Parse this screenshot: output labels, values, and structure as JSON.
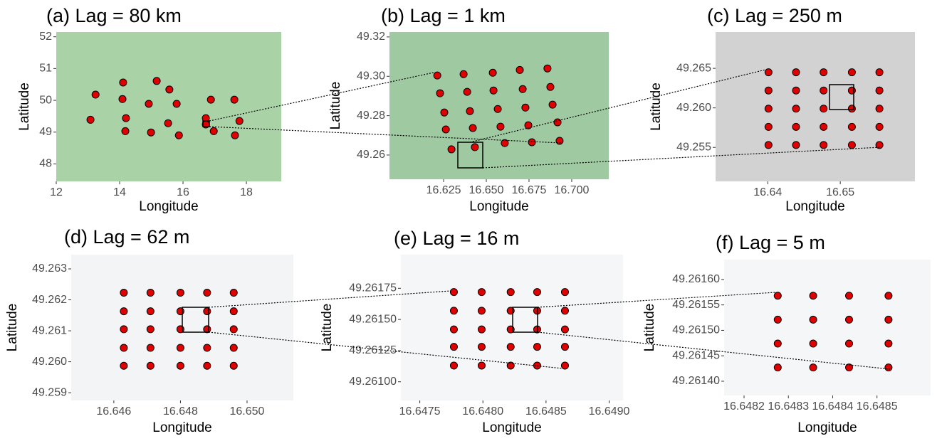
{
  "chart_data": [
    {
      "type": "scatter",
      "title": "(a) Lag = 80 km",
      "x_label": "Longitude",
      "y_label": "Latitude",
      "map_color": "#a9d3a6",
      "color": "#e00000",
      "xlim": [
        12.0,
        19.1
      ],
      "ylim": [
        47.45,
        52.15
      ],
      "xticks": [
        12,
        14,
        16,
        18
      ],
      "yticks": [
        48,
        49,
        50,
        51,
        52
      ],
      "x": [
        13.24,
        14.11,
        15.17,
        15.57,
        14.09,
        14.92,
        15.8,
        16.88,
        17.62,
        13.08,
        14.2,
        15.53,
        16.72,
        17.78,
        14.18,
        14.99,
        15.87,
        16.97,
        17.64,
        16.72
      ],
      "y": [
        50.18,
        50.56,
        50.61,
        50.34,
        50.04,
        49.89,
        49.89,
        50.02,
        50.02,
        49.39,
        49.44,
        49.28,
        49.44,
        49.35,
        49.03,
        48.99,
        48.9,
        49.03,
        48.9,
        49.24
      ]
    },
    {
      "type": "scatter",
      "title": "(b) Lag = 1 km",
      "x_label": "Longitude",
      "y_label": "Latitude",
      "map_color": "#9fc9a0",
      "color": "#e00000",
      "xlim": [
        16.5933,
        16.7217
      ],
      "ylim": [
        49.2477,
        49.3225
      ],
      "xticks": [
        16.625,
        {
          "value": 16.65,
          "label": "16.650"
        },
        16.675,
        {
          "value": 16.7,
          "label": "16.700"
        }
      ],
      "yticks": [
        49.26,
        49.28,
        {
          "value": 49.3,
          "label": "49.30"
        },
        49.32
      ],
      "x": [
        16.6213,
        16.6367,
        16.6538,
        16.6696,
        16.6858,
        16.6229,
        16.6388,
        16.6542,
        16.6713,
        16.6875,
        16.6254,
        16.6404,
        16.6567,
        16.6729,
        16.6888,
        16.6263,
        16.6421,
        16.6583,
        16.6746,
        16.6917,
        16.6296,
        16.6433,
        16.6608,
        16.6767,
        16.6929
      ],
      "y": [
        49.3004,
        49.3011,
        49.3018,
        49.3032,
        49.304,
        49.2914,
        49.2921,
        49.2928,
        49.2935,
        49.2946,
        49.2816,
        49.2823,
        49.2834,
        49.2841,
        49.2856,
        49.273,
        49.2737,
        49.2744,
        49.2751,
        49.2766,
        49.2629,
        49.264,
        49.2661,
        49.2665,
        49.2672
      ]
    },
    {
      "type": "scatter",
      "title": "(c) Lag = 250 m",
      "x_label": "Longitude",
      "y_label": "Latitude",
      "map_color": "#d2d2d2",
      "color": "#e00000",
      "xlim": [
        16.6328,
        16.6603
      ],
      "ylim": [
        49.2507,
        49.2696
      ],
      "xticks": [
        16.64,
        16.65
      ],
      "yticks": [
        49.255,
        {
          "value": 49.26,
          "label": "49.260"
        },
        49.265
      ],
      "x": [
        16.6401,
        16.6439,
        16.6477,
        16.6516,
        16.6554,
        16.6401,
        16.6439,
        16.6477,
        16.6516,
        16.6554,
        16.6401,
        16.6439,
        16.6477,
        16.6516,
        16.6554,
        16.6401,
        16.6439,
        16.6477,
        16.6516,
        16.6554,
        16.6401,
        16.6439,
        16.6477,
        16.6516,
        16.6554
      ],
      "y": [
        49.2645,
        49.2645,
        49.2645,
        49.2645,
        49.2645,
        49.2622,
        49.2622,
        49.2622,
        49.2622,
        49.2622,
        49.2599,
        49.2599,
        49.2599,
        49.2599,
        49.2599,
        49.2576,
        49.2576,
        49.2576,
        49.2576,
        49.2576,
        49.2553,
        49.2553,
        49.2553,
        49.2553,
        49.2553
      ]
    },
    {
      "type": "scatter",
      "title": "(d) Lag = 62 m",
      "x_label": "Longitude",
      "y_label": "Latitude",
      "map_color": "#f3f4f6",
      "color": "#e00000",
      "xlim": [
        16.64472,
        16.65139
      ],
      "ylim": [
        49.25875,
        49.26346
      ],
      "xticks": [
        16.646,
        16.648,
        {
          "value": 16.65,
          "label": "16.650"
        }
      ],
      "yticks": [
        49.259,
        {
          "value": 49.26,
          "label": "49.260"
        },
        49.261,
        49.262,
        49.263
      ],
      "x": [
        16.6463,
        16.6471,
        16.648,
        16.6488,
        16.6496,
        16.6463,
        16.6471,
        16.648,
        16.6488,
        16.6496,
        16.6463,
        16.6471,
        16.648,
        16.6488,
        16.6496,
        16.6463,
        16.6471,
        16.648,
        16.6488,
        16.6496,
        16.6463,
        16.6471,
        16.648,
        16.6488,
        16.6496
      ],
      "y": [
        49.26223,
        49.26223,
        49.26223,
        49.26223,
        49.26223,
        49.26163,
        49.26163,
        49.26163,
        49.26163,
        49.26163,
        49.26105,
        49.26105,
        49.26105,
        49.26105,
        49.26105,
        49.26045,
        49.26045,
        49.26045,
        49.26045,
        49.26045,
        49.25987,
        49.25987,
        49.25987,
        49.25987,
        49.25987
      ]
    },
    {
      "type": "scatter",
      "title": "(e) Lag = 16 m",
      "x_label": "Longitude",
      "y_label": "Latitude",
      "map_color": "#f5f6f8",
      "color": "#e00000",
      "xlim": [
        16.64735,
        16.64911
      ],
      "ylim": [
        49.26085,
        49.26202
      ],
      "xticks": [
        16.6475,
        {
          "value": 16.648,
          "label": "16.6480"
        },
        16.6485,
        {
          "value": 16.649,
          "label": "16.6490"
        }
      ],
      "yticks": [
        {
          "value": 49.261,
          "label": "49.26100"
        },
        49.26125,
        {
          "value": 49.2615,
          "label": "49.26150"
        },
        49.26175
      ],
      "x": [
        16.64777,
        16.64799,
        16.64822,
        16.64843,
        16.64865,
        16.64777,
        16.64799,
        16.64822,
        16.64843,
        16.64865,
        16.64777,
        16.64799,
        16.64822,
        16.64843,
        16.64865,
        16.64777,
        16.64799,
        16.64822,
        16.64843,
        16.64865,
        16.64777,
        16.64799,
        16.64822,
        16.64843,
        16.64865
      ],
      "y": [
        49.26172,
        49.26172,
        49.26172,
        49.26172,
        49.26172,
        49.26157,
        49.26157,
        49.26157,
        49.26157,
        49.26157,
        49.26142,
        49.26142,
        49.26142,
        49.26142,
        49.26142,
        49.26128,
        49.26128,
        49.26128,
        49.26128,
        49.26128,
        49.26113,
        49.26113,
        49.26113,
        49.26113,
        49.26113
      ]
    },
    {
      "type": "scatter",
      "title": "(f) Lag = 5 m",
      "x_label": "Longitude",
      "y_label": "Latitude",
      "map_color": "#f5f6f8",
      "color": "#e00000",
      "xlim": [
        16.648155,
        16.648621
      ],
      "ylim": [
        49.261372,
        49.261639
      ],
      "xticks": [
        16.6482,
        16.6483,
        16.6484,
        16.6485
      ],
      "yticks": [
        {
          "value": 49.2614,
          "label": "49.26140"
        },
        49.26145,
        {
          "value": 49.2615,
          "label": "49.26150"
        },
        49.26155,
        {
          "value": 49.2616,
          "label": "49.26160"
        }
      ],
      "x": [
        16.648276,
        16.648356,
        16.648437,
        16.648526,
        16.648276,
        16.648356,
        16.648437,
        16.648526,
        16.648276,
        16.648356,
        16.648437,
        16.648526,
        16.648276,
        16.648356,
        16.648437,
        16.648526
      ],
      "y": [
        49.261568,
        49.261568,
        49.261568,
        49.261568,
        49.261521,
        49.261521,
        49.261521,
        49.261521,
        49.261474,
        49.261474,
        49.261474,
        49.261474,
        49.261427,
        49.261427,
        49.261427,
        49.261427
      ]
    }
  ]
}
